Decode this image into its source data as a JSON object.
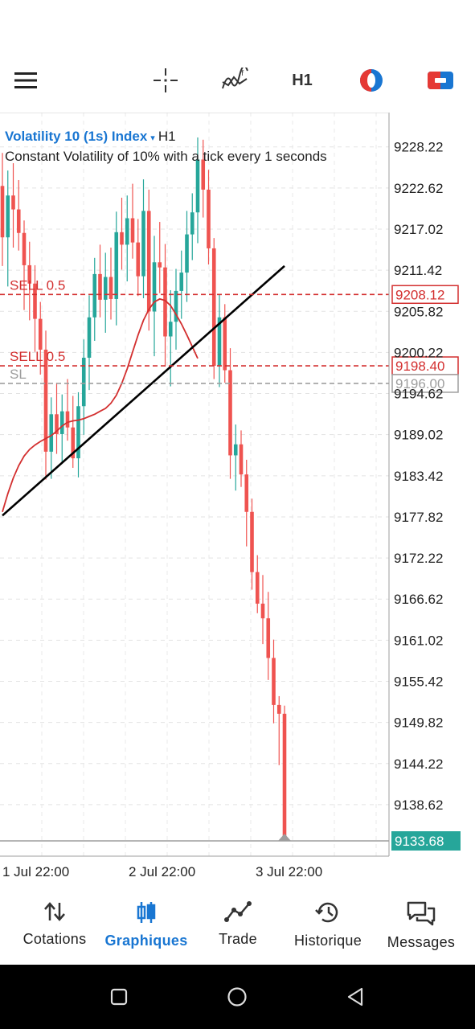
{
  "toolbar": {
    "timeframe": "H1",
    "icons": [
      "menu-icon",
      "crosshair-icon",
      "indicators-icon",
      "timeframe-selector",
      "color-theme-icon",
      "trade-icon"
    ]
  },
  "chart": {
    "symbol": "Volatility 10 (1s) Index",
    "symbol_arrow": "▾",
    "timeframe": "H1",
    "description": "Constant Volatility of 10% with a tick every 1 seconds",
    "current_price": "9133.68",
    "orders": [
      {
        "label": "SELL 0.5",
        "price": 9208.12,
        "price_label": "9208.12",
        "color": "#d32f2f"
      },
      {
        "label": "SELL 0.5",
        "price": 9198.4,
        "price_label": "9198.40",
        "color": "#d32f2f"
      },
      {
        "label": "SL",
        "price": 9196.0,
        "price_label": "9196.00",
        "color": "#9e9e9e"
      }
    ]
  },
  "chart_data": {
    "type": "candlestick",
    "y_ticks": [
      "9228.22",
      "9222.62",
      "9217.02",
      "9211.42",
      "9205.82",
      "9200.22",
      "9194.62",
      "9189.02",
      "9183.42",
      "9177.82",
      "9172.22",
      "9166.62",
      "9161.02",
      "9155.42",
      "9149.82",
      "9144.22",
      "9138.62"
    ],
    "x_ticks": [
      "1 Jul 22:00",
      "2 Jul 22:00",
      "3 Jul 22:00"
    ],
    "ylim": [
      9131.6,
      9232.9
    ],
    "up_color": "#26a69a",
    "down_color": "#ef5350",
    "candles": [
      [
        9222.9,
        9227.4,
        9212.0,
        9215.9
      ],
      [
        9215.9,
        9225.0,
        9209.2,
        9221.6
      ],
      [
        9221.6,
        9226.0,
        9214.5,
        9219.7
      ],
      [
        9219.7,
        9223.7,
        9214.1,
        9216.5
      ],
      [
        9216.5,
        9218.2,
        9206.0,
        9212.1
      ],
      [
        9212.1,
        9215.3,
        9204.6,
        9209.6
      ],
      [
        9209.6,
        9212.1,
        9200.3,
        9204.8
      ],
      [
        9204.8,
        9207.1,
        9197.2,
        9200.6
      ],
      [
        9200.6,
        9203.2,
        9182.9,
        9186.7
      ],
      [
        9186.7,
        9194.1,
        9183.0,
        9191.8
      ],
      [
        9191.8,
        9196.1,
        9186.4,
        9189.1
      ],
      [
        9189.1,
        9194.5,
        9185.3,
        9192.2
      ],
      [
        9192.2,
        9196.6,
        9188.2,
        9190.0
      ],
      [
        9190.0,
        9194.3,
        9184.5,
        9185.8
      ],
      [
        9185.8,
        9194.8,
        9183.2,
        9192.9
      ],
      [
        9192.9,
        9202.0,
        9189.0,
        9199.5
      ],
      [
        9199.5,
        9208.0,
        9195.1,
        9205.0
      ],
      [
        9205.0,
        9213.1,
        9201.8,
        9210.9
      ],
      [
        9210.9,
        9214.9,
        9205.0,
        9207.4
      ],
      [
        9207.4,
        9213.8,
        9202.9,
        9210.5
      ],
      [
        9210.5,
        9214.5,
        9204.7,
        9207.5
      ],
      [
        9207.5,
        9219.4,
        9203.9,
        9216.6
      ],
      [
        9216.6,
        9221.3,
        9211.5,
        9214.9
      ],
      [
        9214.9,
        9221.6,
        9209.9,
        9218.5
      ],
      [
        9218.5,
        9223.2,
        9213.0,
        9215.2
      ],
      [
        9215.2,
        9218.4,
        9207.9,
        9210.6
      ],
      [
        9210.6,
        9223.8,
        9207.6,
        9219.5
      ],
      [
        9219.5,
        9222.4,
        9203.2,
        9205.8
      ],
      [
        9205.8,
        9216.1,
        9199.7,
        9212.5
      ],
      [
        9212.5,
        9218.0,
        9208.3,
        9211.8
      ],
      [
        9211.8,
        9215.0,
        9198.3,
        9202.4
      ],
      [
        9202.4,
        9208.7,
        9195.6,
        9204.4
      ],
      [
        9204.4,
        9211.6,
        9200.6,
        9208.6
      ],
      [
        9208.6,
        9214.1,
        9204.8,
        9211.1
      ],
      [
        9211.1,
        9219.5,
        9207.1,
        9216.3
      ],
      [
        9216.3,
        9221.9,
        9212.8,
        9219.3
      ],
      [
        9219.3,
        9229.5,
        9215.1,
        9226.5
      ],
      [
        9226.5,
        9229.2,
        9218.6,
        9222.4
      ],
      [
        9222.4,
        9225.1,
        9212.2,
        9214.4
      ],
      [
        9214.4,
        9215.8,
        9196.6,
        9198.4
      ],
      [
        9198.4,
        9208.1,
        9195.5,
        9205.0
      ],
      [
        9205.0,
        9206.8,
        9196.1,
        9197.8
      ],
      [
        9197.8,
        9200.8,
        9183.0,
        9186.2
      ],
      [
        9186.2,
        9190.4,
        9181.4,
        9187.7
      ],
      [
        9187.7,
        9189.6,
        9181.9,
        9183.6
      ],
      [
        9183.6,
        9185.6,
        9173.8,
        9178.5
      ],
      [
        9178.5,
        9180.3,
        9167.9,
        9170.3
      ],
      [
        9170.3,
        9172.6,
        9164.7,
        9166.0
      ],
      [
        9166.0,
        9169.9,
        9160.5,
        9164.0
      ],
      [
        9164.0,
        9167.6,
        9155.6,
        9158.6
      ],
      [
        9158.6,
        9161.1,
        9149.7,
        9152.2
      ],
      [
        9152.2,
        9153.4,
        9144.0,
        9151.0
      ],
      [
        9151.0,
        9152.1,
        9133.7,
        9133.7
      ]
    ],
    "trend_line": {
      "from": [
        0,
        9178.0
      ],
      "to": [
        52,
        9212.0
      ],
      "color": "#000000"
    },
    "moving_average": {
      "color": "#d32f2f",
      "values": [
        9178.5,
        9181.0,
        9183.1,
        9184.8,
        9186.1,
        9187.0,
        9187.6,
        9188.1,
        9188.5,
        9188.9,
        9189.5,
        9190.2,
        9190.7,
        9190.9,
        9191.0,
        9191.2,
        9191.5,
        9191.8,
        9192.2,
        9192.6,
        9193.3,
        9194.4,
        9196.0,
        9198.0,
        9200.3,
        9202.6,
        9204.6,
        9206.1,
        9207.1,
        9207.5,
        9207.3,
        9206.6,
        9205.4,
        9204.1,
        9202.6,
        9201.0,
        9199.4
      ]
    }
  },
  "nav": {
    "items": [
      {
        "label": "Cotations",
        "icon": "quotes-icon"
      },
      {
        "label": "Graphiques",
        "icon": "charts-icon"
      },
      {
        "label": "Trade",
        "icon": "trade-chart-icon"
      },
      {
        "label": "Historique",
        "icon": "history-icon"
      },
      {
        "label": "Messages",
        "icon": "messages-icon"
      }
    ],
    "active": "Graphiques"
  }
}
